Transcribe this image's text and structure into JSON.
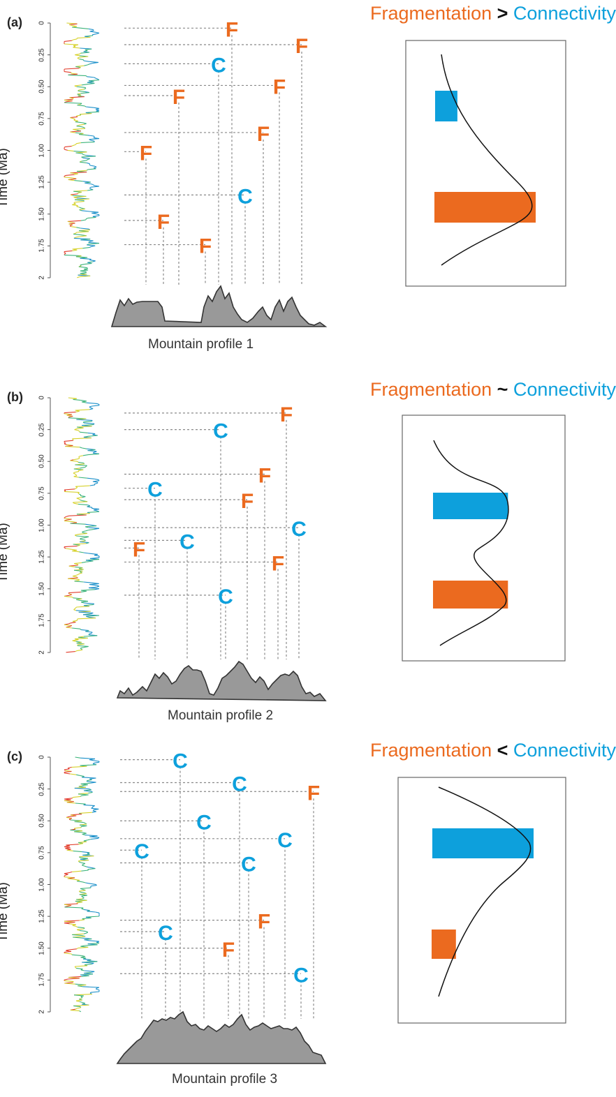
{
  "ylabel": "Time (Ma)",
  "time_ticks": [
    "0",
    "0.25",
    "0.50",
    "0.75",
    "1.00",
    "1.25",
    "1.50",
    "1.75",
    "2"
  ],
  "colors": {
    "fragmentation": "#eb6a1f",
    "connectivity": "#0da0dc"
  },
  "event_letters": {
    "fragmentation": "F",
    "connectivity": "C"
  },
  "panels": [
    {
      "label": "(a)",
      "title": {
        "left": "Fragmentation",
        "symbol": ">",
        "right": "Connectivity"
      },
      "mountain_label": "Mountain profile 1",
      "events": [
        {
          "type": "F",
          "time": 0.04
        },
        {
          "type": "F",
          "time": 0.17
        },
        {
          "type": "C",
          "time": 0.32
        },
        {
          "type": "F",
          "time": 0.49
        },
        {
          "type": "F",
          "time": 0.57
        },
        {
          "type": "F",
          "time": 0.86
        },
        {
          "type": "F",
          "time": 1.01
        },
        {
          "type": "C",
          "time": 1.35
        },
        {
          "type": "F",
          "time": 1.55
        },
        {
          "type": "F",
          "time": 1.74
        }
      ],
      "bars": {
        "connectivity": 0.22,
        "fragmentation": 1.0
      }
    },
    {
      "label": "(b)",
      "title": {
        "left": "Fragmentation",
        "symbol": "~",
        "right": "Connectivity"
      },
      "mountain_label": "Mountain profile 2",
      "events": [
        {
          "type": "F",
          "time": 0.12
        },
        {
          "type": "C",
          "time": 0.25
        },
        {
          "type": "F",
          "time": 0.6
        },
        {
          "type": "C",
          "time": 0.71
        },
        {
          "type": "F",
          "time": 0.8
        },
        {
          "type": "C",
          "time": 1.02
        },
        {
          "type": "C",
          "time": 1.12
        },
        {
          "type": "F",
          "time": 1.18
        },
        {
          "type": "F",
          "time": 1.29
        },
        {
          "type": "C",
          "time": 1.55
        }
      ],
      "bars": {
        "connectivity": 0.74,
        "fragmentation": 0.74
      }
    },
    {
      "label": "(c)",
      "title": {
        "left": "Fragmentation",
        "symbol": "<",
        "right": "Connectivity"
      },
      "mountain_label": "Mountain profile 3",
      "events": [
        {
          "type": "C",
          "time": 0.02
        },
        {
          "type": "C",
          "time": 0.2
        },
        {
          "type": "F",
          "time": 0.27
        },
        {
          "type": "C",
          "time": 0.5
        },
        {
          "type": "C",
          "time": 0.64
        },
        {
          "type": "C",
          "time": 0.73
        },
        {
          "type": "C",
          "time": 0.83
        },
        {
          "type": "F",
          "time": 1.28
        },
        {
          "type": "C",
          "time": 1.37
        },
        {
          "type": "F",
          "time": 1.5
        },
        {
          "type": "C",
          "time": 1.7
        }
      ],
      "bars": {
        "connectivity": 1.0,
        "fragmentation": 0.24
      }
    }
  ]
}
